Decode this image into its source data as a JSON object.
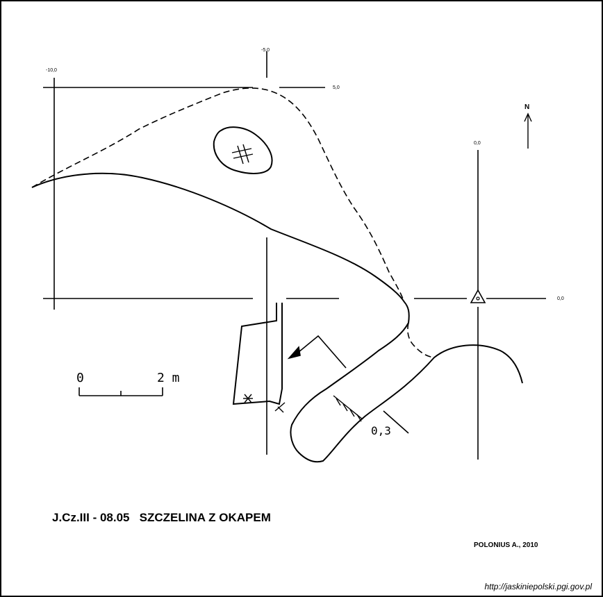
{
  "map": {
    "title": "J.Cz.III - 08.05   SZCZELINA Z OKAPEM",
    "author": "POLONIUS  A., 2010",
    "source_url": "http://jaskiniepolski.pgi.gov.pl",
    "north_label": "N",
    "grid_labels": {
      "top_left": "-10,0",
      "top_center": "-5,0",
      "top_right": "5,0",
      "right_top": "0,0",
      "right_middle": "0,0"
    },
    "scale": {
      "start_label": "0",
      "end_label": "2 m"
    },
    "depth_annotation": "0,3",
    "colors": {
      "ink": "#000000",
      "background": "#ffffff"
    }
  }
}
